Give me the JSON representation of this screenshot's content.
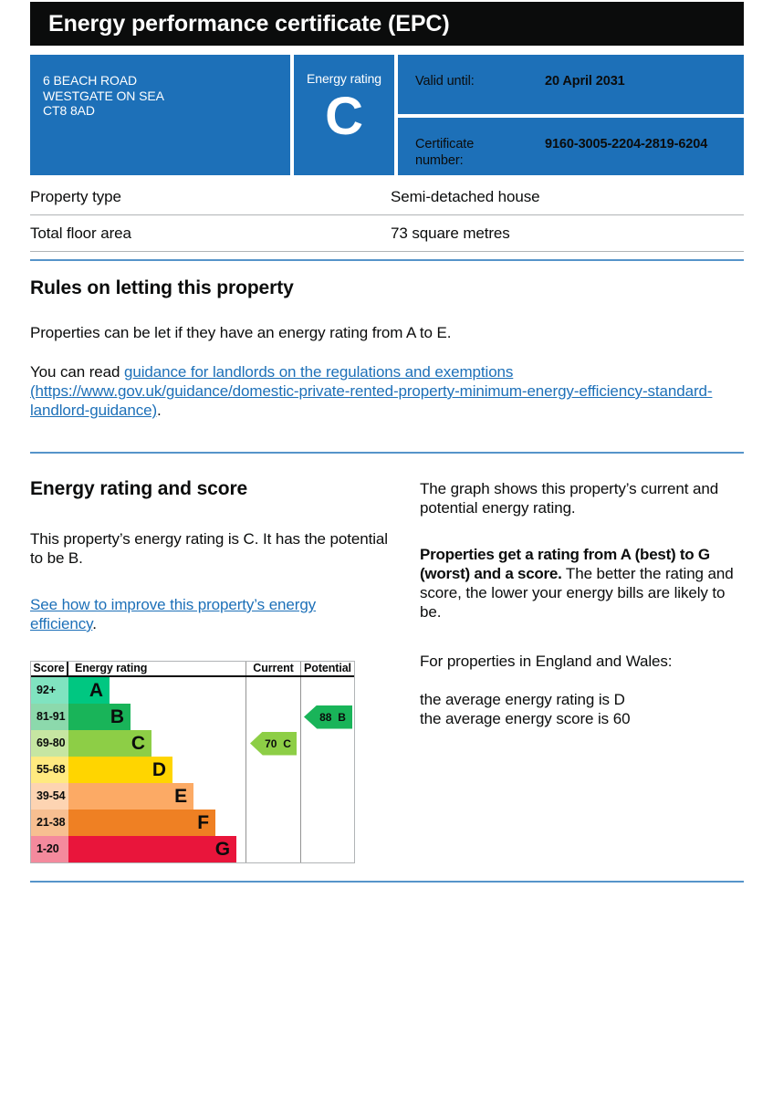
{
  "title": "Energy performance certificate (EPC)",
  "summary": {
    "address_lines": [
      "6 BEACH ROAD",
      "WESTGATE ON SEA",
      "CT8 8AD"
    ],
    "energy_rating_label": "Energy rating",
    "energy_rating": "C",
    "valid_until_label": "Valid until:",
    "valid_until": "20 April 2031",
    "certificate_number_label": "Certificate number:",
    "certificate_number": "9160-3005-2204-2819-6204"
  },
  "property_facts": {
    "rows": [
      {
        "label": "Property type",
        "value": "Semi-detached house"
      },
      {
        "label": "Total floor area",
        "value": "73 square metres"
      }
    ]
  },
  "rules_section": {
    "heading": "Rules on letting this property",
    "paragraph1": "Properties can be let if they have an energy rating from A to E.",
    "paragraph2_prefix": "You can read ",
    "link_text": "guidance for landlords on the regulations and exemptions (https://www.gov.uk/guidance/domestic-private-rented-property-minimum-energy-efficiency-standard-landlord-guidance)",
    "paragraph2_suffix": "."
  },
  "rating_section": {
    "heading": "Energy rating and score",
    "intro": "This property’s energy rating is C. It has the potential to be B.",
    "improve_link_text": "See how to improve this property’s energy efficiency",
    "improve_link_suffix": ".",
    "right_col": {
      "p1": "The graph shows this property’s current and potential energy rating.",
      "p2_bold": "Properties get a rating from A (best) to G (worst) and a score.",
      "p2_rest": " The better the rating and score, the lower your energy bills are likely to be.",
      "p3": "For properties in England and Wales:",
      "p4_line1": "the average energy rating is D",
      "p4_line2": "the average energy score is 60"
    }
  },
  "chart_data": {
    "type": "bar",
    "title": "EPC energy rating graph",
    "columns": [
      "Score",
      "Energy rating",
      "Current",
      "Potential"
    ],
    "bands": [
      {
        "score": "92+",
        "letter": "A",
        "color": "#00c781",
        "tint": "#80e3c0",
        "width": 45
      },
      {
        "score": "81-91",
        "letter": "B",
        "color": "#19b459",
        "tint": "#8cd9ac",
        "width": 68
      },
      {
        "score": "69-80",
        "letter": "C",
        "color": "#8dce46",
        "tint": "#c6e6a2",
        "width": 91
      },
      {
        "score": "55-68",
        "letter": "D",
        "color": "#ffd500",
        "tint": "#ffea80",
        "width": 114
      },
      {
        "score": "39-54",
        "letter": "E",
        "color": "#fcaa65",
        "tint": "#fdd4b2",
        "width": 137
      },
      {
        "score": "21-38",
        "letter": "F",
        "color": "#ef8023",
        "tint": "#f7bf91",
        "width": 161
      },
      {
        "score": "1-20",
        "letter": "G",
        "color": "#e9153b",
        "tint": "#f48a9d",
        "width": 184
      }
    ],
    "current": {
      "score": "70",
      "letter": "C"
    },
    "potential": {
      "score": "88",
      "letter": "B"
    },
    "layout": {
      "grid": false,
      "current_column": "Current",
      "potential_column": "Potential"
    }
  }
}
